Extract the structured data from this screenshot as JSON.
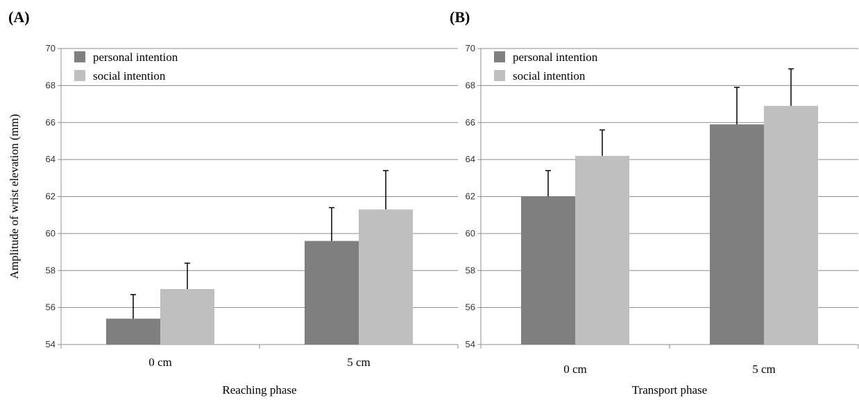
{
  "chart_data": [
    {
      "type": "bar",
      "panel_label": "(A)",
      "xlabel": "Reaching phase",
      "ylabel": "Amplitude of wrist elevation (mm)",
      "ylim": [
        54,
        70
      ],
      "yticks": [
        "54",
        "56",
        "58",
        "60",
        "62",
        "64",
        "66",
        "68",
        "70"
      ],
      "grid": true,
      "legend_position": "top-left",
      "categories": [
        "0 cm",
        "5 cm"
      ],
      "series": [
        {
          "name": "personal intention",
          "color": "#7f7f7f",
          "values": [
            55.4,
            59.6
          ],
          "error": [
            1.3,
            1.8
          ]
        },
        {
          "name": "social intention",
          "color": "#bfbfbf",
          "values": [
            57.0,
            61.3
          ],
          "error": [
            1.4,
            2.1
          ]
        }
      ]
    },
    {
      "type": "bar",
      "panel_label": "(B)",
      "xlabel": "Transport phase",
      "ylabel": "",
      "ylim": [
        54,
        70
      ],
      "yticks": [
        "54",
        "56",
        "58",
        "60",
        "62",
        "64",
        "66",
        "68",
        "70"
      ],
      "grid": true,
      "legend_position": "top-left",
      "categories": [
        "0 cm",
        "5 cm"
      ],
      "series": [
        {
          "name": "personal intention",
          "color": "#7f7f7f",
          "values": [
            62.0,
            65.9
          ],
          "error": [
            1.4,
            2.0
          ]
        },
        {
          "name": "social intention",
          "color": "#bfbfbf",
          "values": [
            64.2,
            66.9
          ],
          "error": [
            1.4,
            2.0
          ]
        }
      ]
    }
  ]
}
